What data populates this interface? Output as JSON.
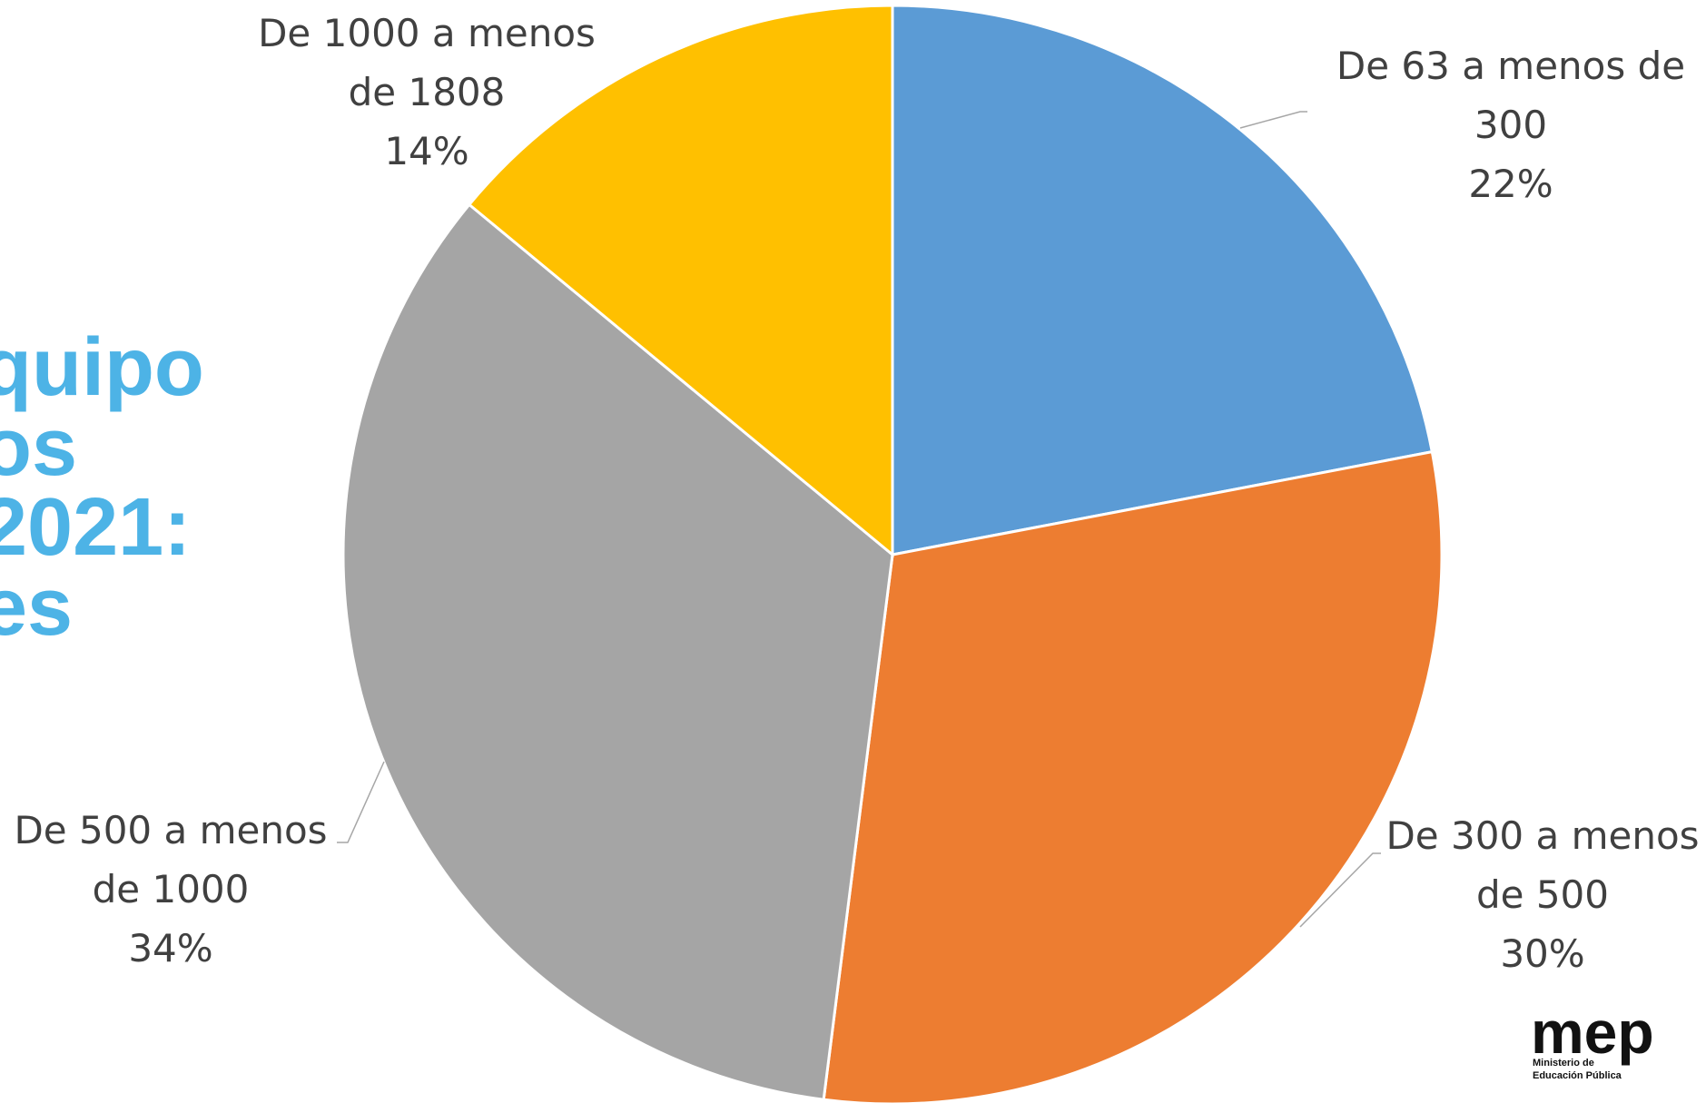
{
  "chart_data": {
    "type": "pie",
    "categories": [
      "De 63 a menos de 300",
      "De 300 a menos de 500",
      "De 500 a menos de 1000",
      "De 1000 a menos de 1808"
    ],
    "values": [
      22,
      30,
      34,
      14
    ],
    "value_labels": [
      "22%",
      "30%",
      "34%",
      "14%"
    ],
    "colors": [
      "#5b9bd5",
      "#ed7d31",
      "#a5a5a5",
      "#ffc000"
    ]
  },
  "title_fragments": [
    "quipo",
    "os",
    "2021:",
    "es"
  ],
  "logo": {
    "text": "mep",
    "line1": "Ministerio de",
    "line2": "Educación Pública"
  }
}
